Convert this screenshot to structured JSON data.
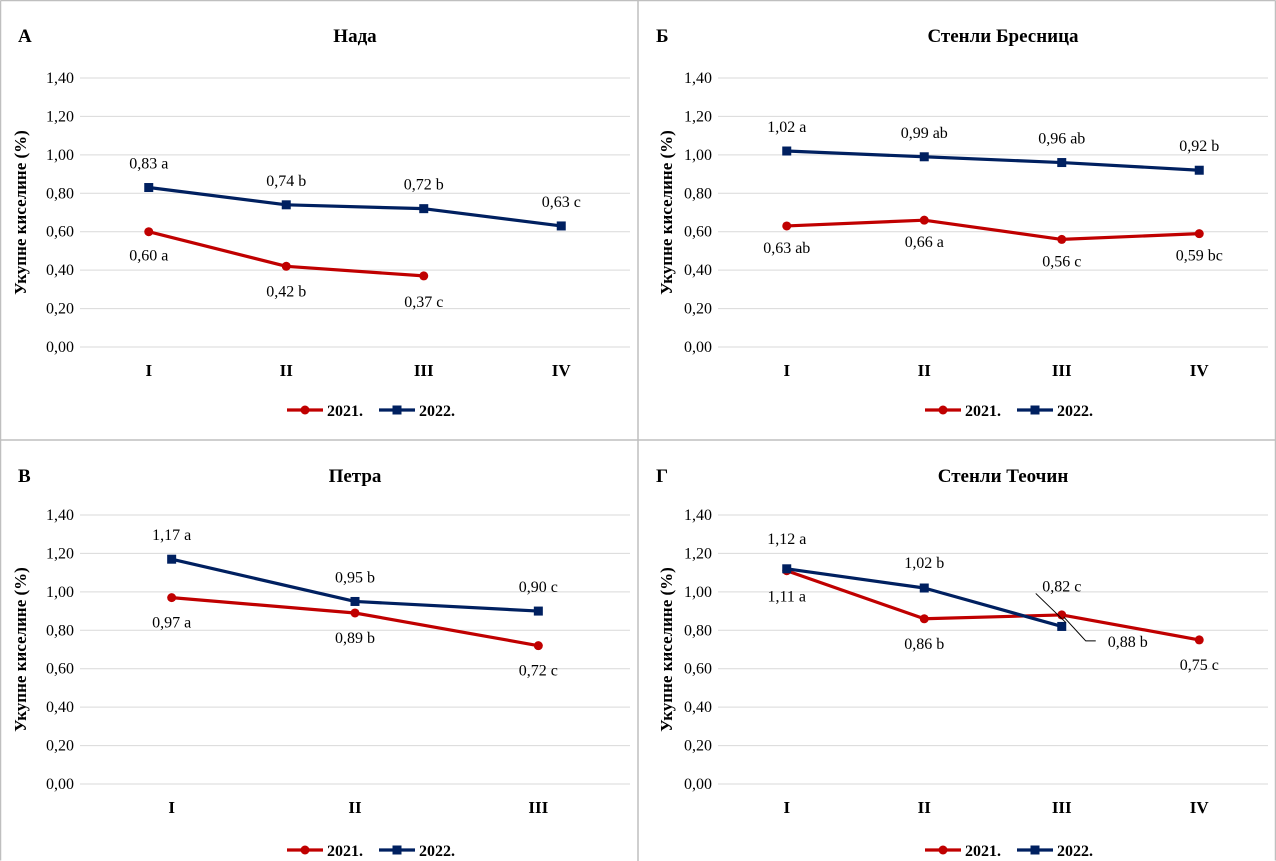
{
  "colors": {
    "series_2021": "#C00000",
    "series_2022": "#002060",
    "gridline": "#D9D9D9",
    "panel_border": "#BFBFBF",
    "text": "#000000"
  },
  "chart_data": [
    {
      "type": "line",
      "panel_letter": "А",
      "title": "Нада",
      "ylabel": "Укупне киселине (%)",
      "ylim": [
        0,
        1.4
      ],
      "yticks": [
        "0,00",
        "0,20",
        "0,40",
        "0,60",
        "0,80",
        "1,00",
        "1,20",
        "1,40"
      ],
      "categories": [
        "I",
        "II",
        "III",
        "IV"
      ],
      "grid": true,
      "legend_position": "bottom",
      "series": [
        {
          "name": "2021.",
          "values": [
            0.6,
            0.42,
            0.37,
            null
          ],
          "labels": [
            "0,60 a",
            "0,42 b",
            "0,37 c",
            null
          ],
          "marker": "circle"
        },
        {
          "name": "2022.",
          "values": [
            0.83,
            0.74,
            0.72,
            0.63
          ],
          "labels": [
            "0,83 a",
            "0,74 b",
            "0,72 b",
            "0,63 c"
          ],
          "marker": "square"
        }
      ]
    },
    {
      "type": "line",
      "panel_letter": "Б",
      "title": "Стенли Бресница",
      "ylabel": "Укупне киселине (%)",
      "ylim": [
        0,
        1.4
      ],
      "yticks": [
        "0,00",
        "0,20",
        "0,40",
        "0,60",
        "0,80",
        "1,00",
        "1,20",
        "1,40"
      ],
      "categories": [
        "I",
        "II",
        "III",
        "IV"
      ],
      "grid": true,
      "legend_position": "bottom",
      "series": [
        {
          "name": "2021.",
          "values": [
            0.63,
            0.66,
            0.56,
            0.59
          ],
          "labels": [
            "0,63 ab",
            "0,66 a",
            "0,56 c",
            "0,59 bc"
          ],
          "marker": "circle"
        },
        {
          "name": "2022.",
          "values": [
            1.02,
            0.99,
            0.96,
            0.92
          ],
          "labels": [
            "1,02 a",
            "0,99 ab",
            "0,96 ab",
            "0,92 b"
          ],
          "marker": "square"
        }
      ]
    },
    {
      "type": "line",
      "panel_letter": "В",
      "title": "Петра",
      "ylabel": "Укупне киселине (%)",
      "ylim": [
        0,
        1.4
      ],
      "yticks": [
        "0,00",
        "0,20",
        "0,40",
        "0,60",
        "0,80",
        "1,00",
        "1,20",
        "1,40"
      ],
      "categories": [
        "I",
        "II",
        "III"
      ],
      "grid": true,
      "legend_position": "bottom",
      "series": [
        {
          "name": "2021.",
          "values": [
            0.97,
            0.89,
            0.72
          ],
          "labels": [
            "0,97 a",
            "0,89 b",
            "0,72 c"
          ],
          "marker": "circle"
        },
        {
          "name": "2022.",
          "values": [
            1.17,
            0.95,
            0.9
          ],
          "labels": [
            "1,17 a",
            "0,95 b",
            "0,90 c"
          ],
          "marker": "square"
        }
      ]
    },
    {
      "type": "line",
      "panel_letter": "Г",
      "title": "Стенли Теочин",
      "ylabel": "Укупне киселине (%)",
      "ylim": [
        0,
        1.4
      ],
      "yticks": [
        "0,00",
        "0,20",
        "0,40",
        "0,60",
        "0,80",
        "1,00",
        "1,20",
        "1,40"
      ],
      "categories": [
        "I",
        "II",
        "III",
        "IV"
      ],
      "grid": true,
      "legend_position": "bottom",
      "series": [
        {
          "name": "2021.",
          "values": [
            1.11,
            0.86,
            0.88,
            0.75
          ],
          "labels": [
            "1,11 a",
            "0,86 b",
            "0,88 b",
            "0,75 c"
          ],
          "marker": "circle"
        },
        {
          "name": "2022.",
          "values": [
            1.12,
            1.02,
            0.82,
            null
          ],
          "labels": [
            "1,12 a",
            "1,02 b",
            "0,82 c",
            null
          ],
          "marker": "square"
        }
      ]
    }
  ]
}
